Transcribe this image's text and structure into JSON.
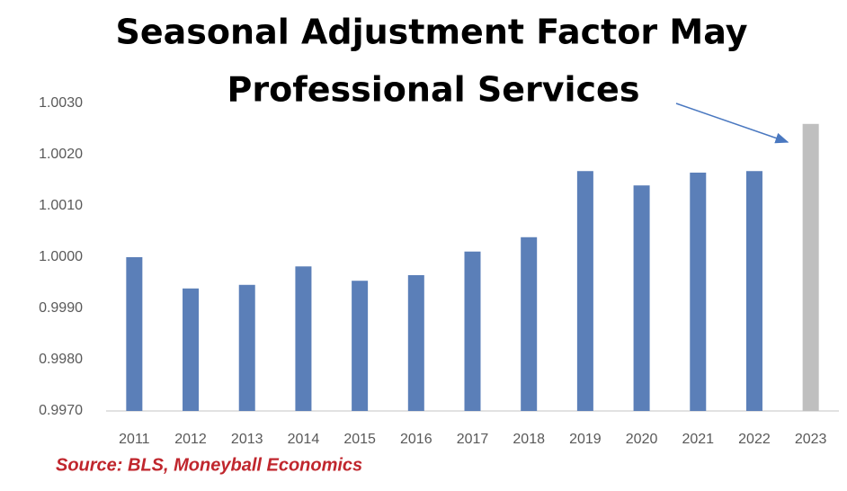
{
  "chart_data": {
    "type": "bar",
    "title_lines": [
      "Seasonal Adjustment Factor May",
      "Professional Services"
    ],
    "source": "Source: BLS, Moneyball Economics",
    "categories": [
      "2011",
      "2012",
      "2013",
      "2014",
      "2015",
      "2016",
      "2017",
      "2018",
      "2019",
      "2020",
      "2021",
      "2022",
      "2023"
    ],
    "values": [
      1.0,
      0.99939,
      0.99946,
      0.99982,
      0.99954,
      0.99965,
      1.00011,
      1.00039,
      1.00168,
      1.0014,
      1.00165,
      1.00168,
      1.0026
    ],
    "colors": [
      "#5b7fb8",
      "#5b7fb8",
      "#5b7fb8",
      "#5b7fb8",
      "#5b7fb8",
      "#5b7fb8",
      "#5b7fb8",
      "#5b7fb8",
      "#5b7fb8",
      "#5b7fb8",
      "#5b7fb8",
      "#5b7fb8",
      "#bfbfbf"
    ],
    "ylim": [
      0.997,
      1.003
    ],
    "yticks": [
      {
        "value": 0.997,
        "label": "0.9970"
      },
      {
        "value": 0.998,
        "label": "0.9980"
      },
      {
        "value": 0.999,
        "label": "0.9990"
      },
      {
        "value": 1.0,
        "label": "1.0000"
      },
      {
        "value": 1.001,
        "label": "1.0010"
      },
      {
        "value": 1.002,
        "label": "1.0020"
      },
      {
        "value": 1.003,
        "label": "1.0030"
      }
    ],
    "grid": false
  }
}
